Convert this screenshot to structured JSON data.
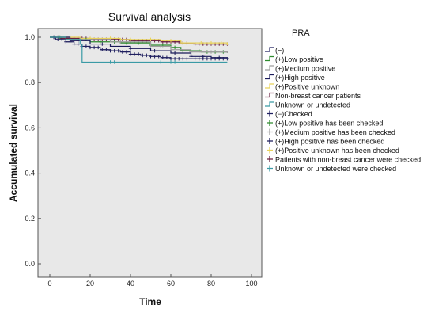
{
  "chart_data": {
    "type": "line",
    "title": "Survival analysis",
    "xlabel": "Time",
    "ylabel": "Accumulated survival",
    "xlim": [
      0,
      100
    ],
    "ylim": [
      0,
      1.0
    ],
    "xticks": [
      "0",
      "20",
      "40",
      "60",
      "80",
      "100"
    ],
    "yticks": [
      "0.0",
      "0.2",
      "0.4",
      "0.6",
      "0.8",
      "1.0"
    ],
    "grid": false,
    "legend_title": "PRA",
    "legend_placement": "right",
    "plot_background": "#e8e8e8",
    "legend_items": [
      {
        "label": "(−)",
        "kind": "line",
        "color": "#1f1f5f"
      },
      {
        "label": "(+)Low positive",
        "kind": "line",
        "color": "#2e8b2e"
      },
      {
        "label": "(+)Medium positive",
        "kind": "line",
        "color": "#9e9e9e"
      },
      {
        "label": "(+)High positive",
        "kind": "line",
        "color": "#1a1a5a"
      },
      {
        "label": "(+)Positive unknown",
        "kind": "line",
        "color": "#e8d25a"
      },
      {
        "label": "Non-breast cancer patients",
        "kind": "line",
        "color": "#6a1f3f"
      },
      {
        "label": "Unknown or undetected",
        "kind": "line",
        "color": "#3a9aa5"
      },
      {
        "label": "(−)Checked",
        "kind": "censor",
        "color": "#1f1f5f"
      },
      {
        "label": "(+)Low positive has been checked",
        "kind": "censor",
        "color": "#2e8b2e"
      },
      {
        "label": "(+)Medium positive has been checked",
        "kind": "censor",
        "color": "#9e9e9e"
      },
      {
        "label": "(+)High positive has been checked",
        "kind": "censor",
        "color": "#1a1a5a"
      },
      {
        "label": "(+)Positive unknown has been checked",
        "kind": "censor",
        "color": "#e8d25a"
      },
      {
        "label": "Patients with non-breast cancer were checked",
        "kind": "censor",
        "color": "#6a1f3f"
      },
      {
        "label": "Unknown or undetected were checked",
        "kind": "censor",
        "color": "#3a9aa5"
      }
    ],
    "series": [
      {
        "color": "#6a1f3f",
        "steps": [
          [
            0,
            1.0
          ],
          [
            5,
            0.995
          ],
          [
            20,
            0.99
          ],
          [
            40,
            0.985
          ],
          [
            55,
            0.98
          ],
          [
            65,
            0.975
          ],
          [
            72,
            0.97
          ],
          [
            88,
            0.97
          ]
        ],
        "censor_x": [
          2,
          4,
          6,
          8,
          10,
          12,
          14,
          16,
          18,
          20,
          22,
          24,
          26,
          28,
          30,
          32,
          34,
          36,
          38,
          40,
          42,
          44,
          46,
          48,
          50,
          52,
          54,
          56,
          58,
          60,
          62,
          64,
          66,
          68,
          70,
          72,
          74,
          76,
          78,
          80,
          82,
          84,
          86,
          88
        ]
      },
      {
        "color": "#e8d25a",
        "steps": [
          [
            0,
            1.0
          ],
          [
            15,
            0.995
          ],
          [
            35,
            0.99
          ],
          [
            55,
            0.985
          ],
          [
            65,
            0.975
          ],
          [
            88,
            0.965
          ]
        ],
        "censor_x": [
          10,
          20,
          30,
          40,
          50,
          60,
          66,
          70,
          75,
          80,
          85
        ]
      },
      {
        "color": "#2e8b2e",
        "steps": [
          [
            0,
            1.0
          ],
          [
            8,
            0.99
          ],
          [
            20,
            0.98
          ],
          [
            35,
            0.975
          ],
          [
            50,
            0.965
          ],
          [
            60,
            0.955
          ],
          [
            65,
            0.94
          ],
          [
            75,
            0.935
          ],
          [
            88,
            0.935
          ]
        ],
        "censor_x": [
          5,
          12,
          18,
          25,
          32,
          38,
          44,
          50,
          56,
          62,
          66,
          70,
          74,
          78,
          82,
          86
        ]
      },
      {
        "color": "#9e9e9e",
        "steps": [
          [
            0,
            1.0
          ],
          [
            10,
            0.99
          ],
          [
            30,
            0.98
          ],
          [
            50,
            0.96
          ],
          [
            60,
            0.945
          ],
          [
            70,
            0.935
          ],
          [
            88,
            0.93
          ]
        ],
        "censor_x": [
          15,
          35,
          55,
          70,
          80
        ]
      },
      {
        "color": "#1a1a5a",
        "steps": [
          [
            0,
            1.0
          ],
          [
            10,
            0.985
          ],
          [
            20,
            0.97
          ],
          [
            30,
            0.96
          ],
          [
            40,
            0.95
          ],
          [
            50,
            0.94
          ],
          [
            60,
            0.93
          ],
          [
            70,
            0.915
          ],
          [
            80,
            0.91
          ],
          [
            88,
            0.91
          ]
        ],
        "censor_x": [
          14,
          26,
          40,
          52,
          62,
          70,
          76,
          84
        ]
      },
      {
        "color": "#1f1f5f",
        "steps": [
          [
            0,
            1.0
          ],
          [
            3,
            0.99
          ],
          [
            8,
            0.98
          ],
          [
            12,
            0.97
          ],
          [
            16,
            0.96
          ],
          [
            20,
            0.955
          ],
          [
            25,
            0.945
          ],
          [
            30,
            0.94
          ],
          [
            35,
            0.935
          ],
          [
            40,
            0.925
          ],
          [
            45,
            0.92
          ],
          [
            50,
            0.915
          ],
          [
            55,
            0.91
          ],
          [
            60,
            0.905
          ],
          [
            70,
            0.905
          ],
          [
            88,
            0.905
          ]
        ],
        "censor_x": [
          2,
          4,
          6,
          8,
          10,
          12,
          14,
          16,
          18,
          20,
          22,
          24,
          26,
          28,
          30,
          32,
          34,
          36,
          38,
          40,
          42,
          44,
          46,
          48,
          50,
          52,
          54,
          56,
          58,
          60,
          62,
          64,
          66,
          68,
          70,
          72,
          74,
          76,
          78,
          80,
          82,
          84,
          86,
          88
        ]
      },
      {
        "color": "#3a9aa5",
        "steps": [
          [
            0,
            1.0
          ],
          [
            8,
            0.99
          ],
          [
            15,
            0.97
          ],
          [
            16,
            0.89
          ],
          [
            88,
            0.89
          ]
        ],
        "censor_x": [
          30,
          32,
          55,
          60,
          62
        ]
      }
    ]
  }
}
